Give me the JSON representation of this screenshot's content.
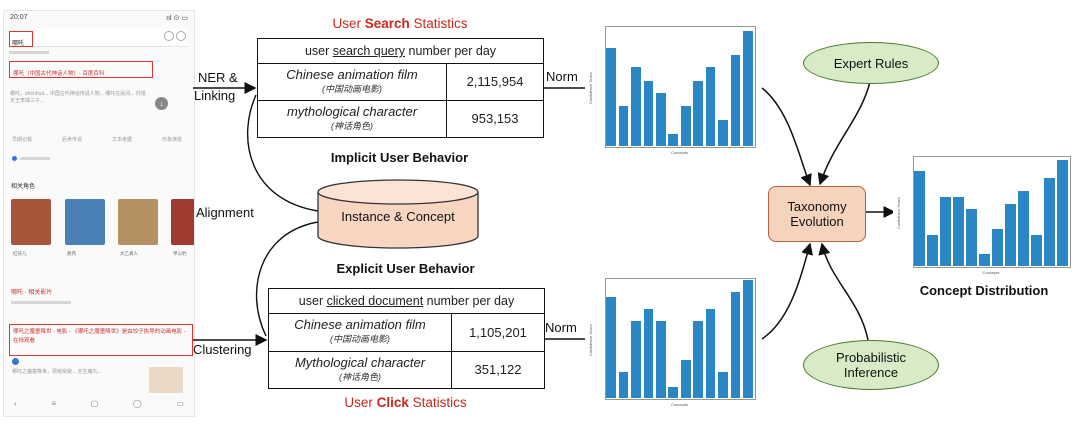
{
  "phone": {
    "time": "20:07",
    "status_icons": "ııl ⊙ ▭",
    "query": "哪吒",
    "link1": "哪吒（中国古代神话人物）- 百度百科",
    "snippet": "哪吒，shénhuà... 中国古代神话传说人物... 哪吒在民间... 托塔天王李靖三子...",
    "chips": [
      "早期记载",
      "后世传说",
      "文本考据",
      "形象演变"
    ],
    "section1": "相关角色",
    "thumbs": [
      {
        "caption": "红孩儿",
        "color": "#a8563a"
      },
      {
        "caption": "敖丙",
        "color": "#4a7fb8"
      },
      {
        "caption": "太乙真人",
        "color": "#b59062"
      },
      {
        "caption": "申公豹",
        "color": "#a03b2f"
      }
    ],
    "section2": "哪吒 · 相关影片",
    "link2": "哪吒之魔童降世 - 电影 - 《哪吒之魔童降世》是由饺子执导的动画电影 - 在线观看",
    "snippet2": "哪吒之魔童降世，票房突破... 天生魔丸...",
    "nav": [
      "‹",
      "≡",
      "▢",
      "◯",
      "▭"
    ]
  },
  "search_table": {
    "title_pre": "User ",
    "title_bold": "Search",
    "title_post": " Statistics",
    "header_pre": "user ",
    "header_u": "search query",
    "header_post": " number per day",
    "rows": [
      {
        "name": "Chinese animation film",
        "zh": "(中国动画电影)",
        "value": "2,115,954"
      },
      {
        "name": "mythological character",
        "zh": "(神话角色)",
        "value": "953,153"
      }
    ],
    "caption": "Implicit User Behavior"
  },
  "click_table": {
    "title_pre": "User ",
    "title_bold": "Click",
    "title_post": " Statistics",
    "header_pre": "user ",
    "header_u": "clicked document",
    "header_post": " number per day",
    "rows": [
      {
        "name": "Chinese animation film",
        "zh": "(中国动画电影)",
        "value": "1,105,201"
      },
      {
        "name": "Mythological character",
        "zh": "(神话角色)",
        "value": "351,122"
      }
    ],
    "caption": "Explicit User Behavior"
  },
  "labels": {
    "ner1": "NER &",
    "ner2": "Linking",
    "alignment": "Alignment",
    "clustering": "Clustering",
    "norm1": "Norm",
    "norm2": "Norm",
    "cylinder": "Instance & Concept",
    "expert": "Expert Rules",
    "prob1": "Probabilistic",
    "prob2": "Inference",
    "taxo1": "Taxonomy",
    "taxo2": "Evolution",
    "dist": "Concept Distribution"
  },
  "colors": {
    "bar": "#2a86c5",
    "red": "#c8281e",
    "ellipse_fill": "#d6ebc6",
    "taxo_fill": "#f6d3bd"
  },
  "chart_data": [
    {
      "type": "bar",
      "title": "",
      "xlabel": "Concepts",
      "ylabel": "Confidence Score",
      "ylim": [
        0,
        1
      ],
      "values": [
        0.82,
        0.33,
        0.66,
        0.54,
        0.44,
        0.1,
        0.33,
        0.54,
        0.66,
        0.22,
        0.76,
        0.96
      ]
    },
    {
      "type": "bar",
      "title": "",
      "xlabel": "Concepts",
      "ylabel": "Confidence Score",
      "ylim": [
        0,
        1
      ],
      "values": [
        0.84,
        0.22,
        0.64,
        0.74,
        0.64,
        0.09,
        0.32,
        0.64,
        0.74,
        0.22,
        0.88,
        0.98
      ]
    },
    {
      "type": "bar",
      "title": "",
      "xlabel": "Concepts",
      "ylabel": "Confidence Score",
      "ylim": [
        0,
        1
      ],
      "values": [
        0.86,
        0.28,
        0.63,
        0.63,
        0.52,
        0.11,
        0.34,
        0.56,
        0.68,
        0.28,
        0.8,
        0.96
      ]
    }
  ]
}
